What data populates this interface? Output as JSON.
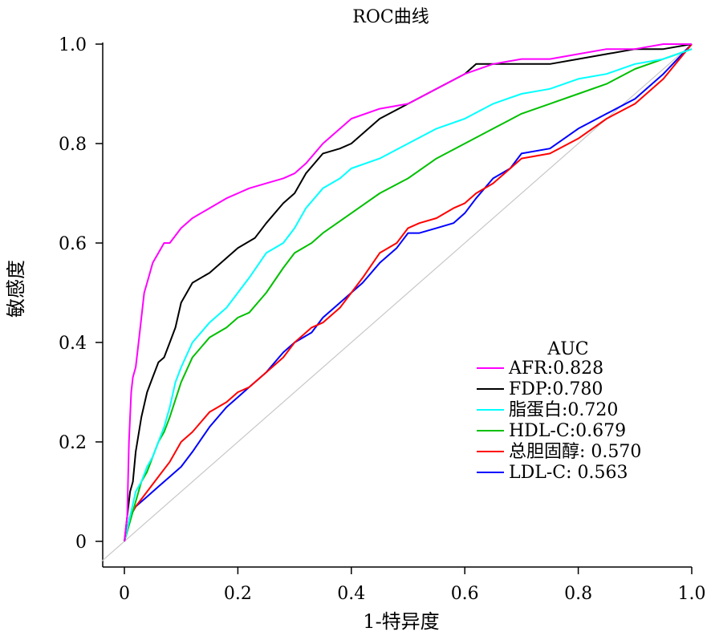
{
  "chart_data": {
    "type": "line",
    "title": "ROC曲线",
    "xlabel": "1-特异度",
    "ylabel": "敏感度",
    "xlim": [
      -0.04,
      1.0
    ],
    "ylim": [
      -0.05,
      1.0
    ],
    "x_ticks": [
      {
        "value": 0,
        "label": "0"
      },
      {
        "value": 0.2,
        "label": "0.2"
      },
      {
        "value": 0.4,
        "label": "0.4"
      },
      {
        "value": 0.6,
        "label": "0.6"
      },
      {
        "value": 0.8,
        "label": "0.8"
      },
      {
        "value": 1.0,
        "label": "1.0"
      }
    ],
    "y_ticks": [
      {
        "value": 0,
        "label": "0"
      },
      {
        "value": 0.2,
        "label": "0.2"
      },
      {
        "value": 0.4,
        "label": "0.4"
      },
      {
        "value": 0.6,
        "label": "0.6"
      },
      {
        "value": 0.8,
        "label": "0.8"
      },
      {
        "value": 1.0,
        "label": "1.0"
      }
    ],
    "legend": {
      "title": "AUC",
      "placement": "bottom-right"
    },
    "diagonal": {
      "color": "#c8c8c8",
      "x": [
        -0.04,
        1.0
      ],
      "y": [
        -0.04,
        1.0
      ]
    },
    "series": [
      {
        "label": "AFR:0.828",
        "color": "#ff00ff",
        "x": [
          0,
          0.005,
          0.008,
          0.012,
          0.015,
          0.02,
          0.025,
          0.03,
          0.035,
          0.04,
          0.05,
          0.06,
          0.07,
          0.08,
          0.1,
          0.12,
          0.15,
          0.18,
          0.2,
          0.22,
          0.25,
          0.28,
          0.3,
          0.32,
          0.35,
          0.38,
          0.4,
          0.45,
          0.5,
          0.55,
          0.6,
          0.65,
          0.7,
          0.75,
          0.8,
          0.85,
          0.9,
          0.95,
          1.0
        ],
        "y": [
          0,
          0.05,
          0.2,
          0.3,
          0.33,
          0.35,
          0.4,
          0.45,
          0.5,
          0.52,
          0.56,
          0.58,
          0.6,
          0.6,
          0.63,
          0.65,
          0.67,
          0.69,
          0.7,
          0.71,
          0.72,
          0.73,
          0.74,
          0.76,
          0.8,
          0.83,
          0.85,
          0.87,
          0.88,
          0.91,
          0.94,
          0.96,
          0.97,
          0.97,
          0.98,
          0.99,
          0.99,
          1.0,
          1.0
        ]
      },
      {
        "label": "FDP:0.780",
        "color": "#000000",
        "x": [
          0,
          0.005,
          0.01,
          0.015,
          0.02,
          0.03,
          0.04,
          0.05,
          0.06,
          0.07,
          0.08,
          0.09,
          0.1,
          0.12,
          0.15,
          0.18,
          0.2,
          0.23,
          0.25,
          0.28,
          0.3,
          0.32,
          0.35,
          0.38,
          0.4,
          0.45,
          0.5,
          0.55,
          0.6,
          0.62,
          0.65,
          0.7,
          0.75,
          0.8,
          0.85,
          0.9,
          0.95,
          1.0
        ],
        "y": [
          0,
          0.05,
          0.1,
          0.12,
          0.18,
          0.25,
          0.3,
          0.33,
          0.36,
          0.37,
          0.4,
          0.43,
          0.48,
          0.52,
          0.54,
          0.57,
          0.59,
          0.61,
          0.64,
          0.68,
          0.7,
          0.74,
          0.78,
          0.79,
          0.8,
          0.85,
          0.88,
          0.91,
          0.94,
          0.96,
          0.96,
          0.96,
          0.96,
          0.97,
          0.98,
          0.99,
          0.99,
          1.0
        ]
      },
      {
        "label": "脂蛋白:0.720",
        "color": "#00ffff",
        "x": [
          0,
          0.01,
          0.02,
          0.03,
          0.04,
          0.05,
          0.06,
          0.07,
          0.08,
          0.09,
          0.1,
          0.12,
          0.15,
          0.18,
          0.2,
          0.22,
          0.25,
          0.28,
          0.3,
          0.32,
          0.35,
          0.38,
          0.4,
          0.45,
          0.5,
          0.55,
          0.6,
          0.65,
          0.7,
          0.75,
          0.8,
          0.85,
          0.9,
          0.95,
          1.0
        ],
        "y": [
          0,
          0.05,
          0.1,
          0.12,
          0.15,
          0.17,
          0.2,
          0.23,
          0.27,
          0.32,
          0.35,
          0.4,
          0.44,
          0.47,
          0.5,
          0.53,
          0.58,
          0.6,
          0.63,
          0.67,
          0.71,
          0.73,
          0.75,
          0.77,
          0.8,
          0.83,
          0.85,
          0.88,
          0.9,
          0.91,
          0.93,
          0.94,
          0.96,
          0.97,
          0.99
        ]
      },
      {
        "label": "HDL-C:0.679",
        "color": "#00c000",
        "x": [
          0,
          0.01,
          0.02,
          0.03,
          0.04,
          0.05,
          0.06,
          0.07,
          0.08,
          0.1,
          0.12,
          0.15,
          0.18,
          0.2,
          0.22,
          0.25,
          0.28,
          0.3,
          0.33,
          0.35,
          0.4,
          0.45,
          0.5,
          0.55,
          0.6,
          0.65,
          0.7,
          0.75,
          0.8,
          0.85,
          0.9,
          0.95,
          1.0
        ],
        "y": [
          0,
          0.04,
          0.08,
          0.12,
          0.14,
          0.17,
          0.2,
          0.22,
          0.25,
          0.32,
          0.37,
          0.41,
          0.43,
          0.45,
          0.46,
          0.5,
          0.55,
          0.58,
          0.6,
          0.62,
          0.66,
          0.7,
          0.73,
          0.77,
          0.8,
          0.83,
          0.86,
          0.88,
          0.9,
          0.92,
          0.95,
          0.97,
          0.99
        ]
      },
      {
        "label": "总胆固醇: 0.570",
        "color": "#ff0000",
        "x": [
          0,
          0.01,
          0.02,
          0.04,
          0.06,
          0.08,
          0.1,
          0.12,
          0.15,
          0.18,
          0.2,
          0.22,
          0.25,
          0.28,
          0.3,
          0.33,
          0.35,
          0.38,
          0.4,
          0.42,
          0.45,
          0.48,
          0.5,
          0.52,
          0.55,
          0.58,
          0.6,
          0.62,
          0.65,
          0.68,
          0.7,
          0.75,
          0.8,
          0.85,
          0.9,
          0.95,
          1.0
        ],
        "y": [
          0,
          0.05,
          0.07,
          0.1,
          0.13,
          0.16,
          0.2,
          0.22,
          0.26,
          0.28,
          0.3,
          0.31,
          0.34,
          0.37,
          0.4,
          0.43,
          0.44,
          0.47,
          0.5,
          0.53,
          0.58,
          0.6,
          0.63,
          0.64,
          0.65,
          0.67,
          0.68,
          0.7,
          0.72,
          0.75,
          0.77,
          0.78,
          0.81,
          0.85,
          0.88,
          0.93,
          1.0
        ]
      },
      {
        "label": "LDL-C: 0.563",
        "color": "#0000ff",
        "x": [
          0,
          0.01,
          0.02,
          0.04,
          0.06,
          0.08,
          0.1,
          0.12,
          0.15,
          0.18,
          0.2,
          0.22,
          0.25,
          0.28,
          0.3,
          0.33,
          0.35,
          0.38,
          0.4,
          0.42,
          0.45,
          0.48,
          0.5,
          0.52,
          0.55,
          0.58,
          0.6,
          0.62,
          0.65,
          0.68,
          0.7,
          0.75,
          0.8,
          0.85,
          0.9,
          0.95,
          1.0
        ],
        "y": [
          0,
          0.05,
          0.07,
          0.09,
          0.11,
          0.13,
          0.15,
          0.18,
          0.23,
          0.27,
          0.29,
          0.31,
          0.34,
          0.38,
          0.4,
          0.42,
          0.45,
          0.48,
          0.5,
          0.52,
          0.56,
          0.59,
          0.62,
          0.62,
          0.63,
          0.64,
          0.66,
          0.69,
          0.73,
          0.75,
          0.78,
          0.79,
          0.83,
          0.86,
          0.89,
          0.94,
          1.0
        ]
      }
    ]
  }
}
